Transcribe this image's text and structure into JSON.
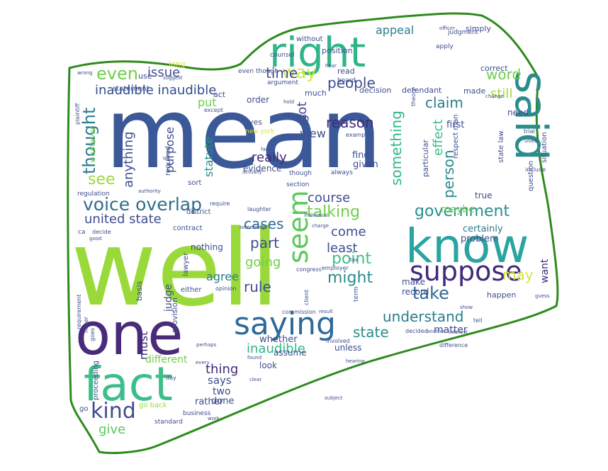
{
  "colors": {
    "border": "#2e8b1e",
    "background": "#ffffff",
    "palette": [
      "#3b5998",
      "#9ad93a",
      "#4a2a7a",
      "#2fb58a",
      "#2a8c8c",
      "#1f6e8c",
      "#5cc85a",
      "#d4e63c",
      "#3f4d8f"
    ]
  },
  "words": [
    {
      "text": "mean",
      "color": "#3b5998"
    },
    {
      "text": "well",
      "color": "#9ad93a"
    },
    {
      "text": "right",
      "color": "#2fb58a"
    },
    {
      "text": "know",
      "color": "#2aa4a0"
    },
    {
      "text": "one",
      "color": "#4a2a7a"
    },
    {
      "text": "fact",
      "color": "#3cbf8a"
    },
    {
      "text": "said",
      "color": "#2a8c8c"
    },
    {
      "text": "saying",
      "color": "#2d6a9a"
    },
    {
      "text": "suppose",
      "color": "#3f2a7a"
    },
    {
      "text": "government",
      "color": "#2a8c8c"
    },
    {
      "text": "voice overlap",
      "color": "#2f6d8c"
    },
    {
      "text": "kind",
      "color": "#3f4d8f"
    },
    {
      "text": "even",
      "color": "#6fcf4a"
    },
    {
      "text": "thought",
      "color": "#2a7d8c"
    },
    {
      "text": "way",
      "color": "#d4e63c"
    },
    {
      "text": "seem",
      "color": "#5cc85a"
    },
    {
      "text": "take",
      "color": "#2d6a9a"
    },
    {
      "text": "people",
      "color": "#3f4d8f"
    },
    {
      "text": "inaudible inaudible",
      "color": "#2f4e8a"
    },
    {
      "text": "issue",
      "color": "#3f4d8f"
    },
    {
      "text": "time",
      "color": "#3f4d8f"
    },
    {
      "text": "claim",
      "color": "#2a7d8c"
    },
    {
      "text": "word",
      "color": "#6fcf4a"
    },
    {
      "text": "still",
      "color": "#a0d93a"
    },
    {
      "text": "appeal",
      "color": "#2a7d8c"
    },
    {
      "text": "reason",
      "color": "#3f2a7a"
    },
    {
      "text": "really",
      "color": "#3f2a7a"
    },
    {
      "text": "something",
      "color": "#2fb58a"
    },
    {
      "text": "person",
      "color": "#2a8c8c"
    },
    {
      "text": "effect",
      "color": "#3cbf8a"
    },
    {
      "text": "talking",
      "color": "#6fcf4a"
    },
    {
      "text": "cases",
      "color": "#2d6a9a"
    },
    {
      "text": "come",
      "color": "#3f4d8f"
    },
    {
      "text": "least",
      "color": "#3f4d8f"
    },
    {
      "text": "part",
      "color": "#3f4d8f"
    },
    {
      "text": "point",
      "color": "#3cbf8a"
    },
    {
      "text": "going",
      "color": "#6fcf4a"
    },
    {
      "text": "might",
      "color": "#2a8c8c"
    },
    {
      "text": "rule",
      "color": "#3f4d8f"
    },
    {
      "text": "agree",
      "color": "#2a7d8c"
    },
    {
      "text": "united state",
      "color": "#3f4d8f"
    },
    {
      "text": "understand",
      "color": "#2a7d8c"
    },
    {
      "text": "state",
      "color": "#2a8c8c"
    },
    {
      "text": "inaudible",
      "color": "#2fb58a"
    },
    {
      "text": "thing",
      "color": "#3f2a7a"
    },
    {
      "text": "says",
      "color": "#3f4d8f"
    },
    {
      "text": "two",
      "color": "#3f4d8f"
    },
    {
      "text": "give",
      "color": "#5cc85a"
    },
    {
      "text": "see",
      "color": "#9ad93a"
    },
    {
      "text": "anything",
      "color": "#3f4d8f"
    },
    {
      "text": "statute",
      "color": "#2a8c8c"
    },
    {
      "text": "course",
      "color": "#3f4d8f"
    },
    {
      "text": "view",
      "color": "#3f4d8f"
    },
    {
      "text": "got",
      "color": "#3f4d8f"
    },
    {
      "text": "purpose",
      "color": "#3f4d8f"
    },
    {
      "text": "put",
      "color": "#6fcf4a"
    },
    {
      "text": "judge",
      "color": "#3f4d8f"
    },
    {
      "text": "must",
      "color": "#3f2a7a"
    },
    {
      "text": "matter",
      "color": "#3f4d8f"
    },
    {
      "text": "may",
      "color": "#d4e63c"
    },
    {
      "text": "want",
      "color": "#3f2a7a"
    },
    {
      "text": "certainly",
      "color": "#2a7d8c"
    },
    {
      "text": "true",
      "color": "#3f4d8f"
    },
    {
      "text": "maybe",
      "color": "#6fcf4a"
    },
    {
      "text": "problem",
      "color": "#3f4d8f"
    },
    {
      "text": "first",
      "color": "#3f4d8f"
    },
    {
      "text": "find",
      "color": "#3f4d8f"
    },
    {
      "text": "given",
      "color": "#3f4d8f"
    },
    {
      "text": "evidence",
      "color": "#3f4d8f"
    },
    {
      "text": "nothing",
      "color": "#3f4d8f"
    },
    {
      "text": "different",
      "color": "#6fcf4a"
    },
    {
      "text": "done",
      "color": "#3f4d8f"
    },
    {
      "text": "rather",
      "color": "#3f4d8f"
    },
    {
      "text": "assume",
      "color": "#3f4d8f"
    },
    {
      "text": "look",
      "color": "#3f4d8f"
    },
    {
      "text": "whether",
      "color": "#3f4d8f"
    },
    {
      "text": "unless",
      "color": "#3f4d8f"
    },
    {
      "text": "need",
      "color": "#3f4d8f"
    },
    {
      "text": "make",
      "color": "#3f4d8f"
    },
    {
      "text": "record",
      "color": "#3f4d8f"
    },
    {
      "text": "happen",
      "color": "#3f4d8f"
    },
    {
      "text": "correct",
      "color": "#3f4d8f"
    },
    {
      "text": "simply",
      "color": "#3f4d8f"
    },
    {
      "text": "position",
      "color": "#3f4d8f"
    },
    {
      "text": "read",
      "color": "#3f4d8f"
    },
    {
      "text": "order",
      "color": "#3f4d8f"
    },
    {
      "text": "much",
      "color": "#3f4d8f"
    },
    {
      "text": "decision",
      "color": "#3f4d8f"
    },
    {
      "text": "defendant",
      "color": "#3f4d8f"
    },
    {
      "text": "made",
      "color": "#3f4d8f"
    },
    {
      "text": "use",
      "color": "#3f4d8f"
    },
    {
      "text": "long",
      "color": "#d4e63c"
    },
    {
      "text": "act",
      "color": "#3f4d8f"
    },
    {
      "text": "statement",
      "color": "#3f4d8f"
    },
    {
      "text": "without",
      "color": "#3f4d8f"
    },
    {
      "text": "yes",
      "color": "#3f4d8f"
    },
    {
      "text": "new york",
      "color": "#d4e63c"
    },
    {
      "text": "whatever",
      "color": "#6fcf4a"
    },
    {
      "text": "required",
      "color": "#3f4d8f"
    },
    {
      "text": "sort",
      "color": "#3f4d8f"
    },
    {
      "text": "district",
      "color": "#3f4d8f"
    },
    {
      "text": "provision",
      "color": "#3f4d8f"
    },
    {
      "text": "lawyer",
      "color": "#3f4d8f"
    },
    {
      "text": "either",
      "color": "#3f4d8f"
    },
    {
      "text": "basis",
      "color": "#3f4d8f"
    },
    {
      "text": "contract",
      "color": "#3f4d8f"
    },
    {
      "text": "situation",
      "color": "#3f4d8f"
    },
    {
      "text": "state law",
      "color": "#3f4d8f"
    },
    {
      "text": "respect man",
      "color": "#3f4d8f"
    },
    {
      "text": "particular",
      "color": "#3f4d8f"
    },
    {
      "text": "question",
      "color": "#3f4d8f"
    },
    {
      "text": "go back",
      "color": "#9ad93a"
    },
    {
      "text": "business",
      "color": "#3f4d8f"
    },
    {
      "text": "standard",
      "color": "#3f4d8f"
    },
    {
      "text": "go",
      "color": "#3f4d8f"
    },
    {
      "text": "proceeding",
      "color": "#3f4d8f"
    },
    {
      "text": "ca",
      "color": "#3f4d8f"
    },
    {
      "text": "regulation",
      "color": "#3f4d8f"
    },
    {
      "text": "section",
      "color": "#3f4d8f"
    },
    {
      "text": "though",
      "color": "#3f4d8f"
    },
    {
      "text": "always",
      "color": "#3f4d8f"
    },
    {
      "text": "even though",
      "color": "#3f4d8f"
    },
    {
      "text": "argument",
      "color": "#3f4d8f"
    },
    {
      "text": "counsel",
      "color": "#3f4d8f"
    },
    {
      "text": "board",
      "color": "#3f4d8f"
    },
    {
      "text": "apply",
      "color": "#3f4d8f"
    },
    {
      "text": "judgment",
      "color": "#3f4d8f"
    },
    {
      "text": "officer",
      "color": "#3f4d8f"
    },
    {
      "text": "example",
      "color": "#3f4d8f"
    },
    {
      "text": "theory",
      "color": "#3f4d8f"
    },
    {
      "text": "trial",
      "color": "#3f4d8f"
    },
    {
      "text": "used",
      "color": "#3f4d8f"
    },
    {
      "text": "include",
      "color": "#3f4d8f"
    },
    {
      "text": "change",
      "color": "#3f4d8f"
    },
    {
      "text": "except",
      "color": "#3f4d8f"
    },
    {
      "text": "hold",
      "color": "#3f4d8f"
    },
    {
      "text": "finding",
      "color": "#3f4d8f"
    },
    {
      "text": "plaintiff",
      "color": "#3f4d8f"
    },
    {
      "text": "wrong",
      "color": "#3f4d8f"
    },
    {
      "text": "suggest",
      "color": "#3f4d8f"
    },
    {
      "text": "hear",
      "color": "#3f4d8f"
    },
    {
      "text": "let",
      "color": "#3f4d8f"
    },
    {
      "text": "require",
      "color": "#3f4d8f"
    },
    {
      "text": "far",
      "color": "#3f4d8f"
    },
    {
      "text": "actually",
      "color": "#3f4d8f"
    },
    {
      "text": "authority",
      "color": "#3f4d8f"
    },
    {
      "text": "individual",
      "color": "#3f4d8f"
    },
    {
      "text": "laughter",
      "color": "#3f4d8f"
    },
    {
      "text": "charge",
      "color": "#3f4d8f"
    },
    {
      "text": "somebody",
      "color": "#3f4d8f"
    },
    {
      "text": "decide",
      "color": "#3f4d8f"
    },
    {
      "text": "employer",
      "color": "#3f4d8f"
    },
    {
      "text": "congress",
      "color": "#3f4d8f"
    },
    {
      "text": "client",
      "color": "#3f4d8f"
    },
    {
      "text": "term",
      "color": "#3f4d8f"
    },
    {
      "text": "commission",
      "color": "#3f4d8f"
    },
    {
      "text": "result",
      "color": "#3f4d8f"
    },
    {
      "text": "hearing",
      "color": "#3f4d8f"
    },
    {
      "text": "subject",
      "color": "#3f4d8f"
    },
    {
      "text": "found",
      "color": "#3f4d8f"
    },
    {
      "text": "clear",
      "color": "#3f4d8f"
    },
    {
      "text": "every",
      "color": "#3f4d8f"
    },
    {
      "text": "perhaps",
      "color": "#3f4d8f"
    },
    {
      "text": "day",
      "color": "#3f4d8f"
    },
    {
      "text": "work",
      "color": "#3f4d8f"
    },
    {
      "text": "never",
      "color": "#3f4d8f"
    },
    {
      "text": "goes",
      "color": "#3f4d8f"
    },
    {
      "text": "requirement",
      "color": "#3f4d8f"
    },
    {
      "text": "interest",
      "color": "#3f4d8f"
    },
    {
      "text": "decided",
      "color": "#3f4d8f"
    },
    {
      "text": "difference",
      "color": "#3f4d8f"
    },
    {
      "text": "guess",
      "color": "#3f4d8f"
    },
    {
      "text": "tell",
      "color": "#3f4d8f"
    },
    {
      "text": "show",
      "color": "#3f4d8f"
    },
    {
      "text": "tax",
      "color": "#3f4d8f"
    },
    {
      "text": "good",
      "color": "#3f4d8f"
    },
    {
      "text": "opinion",
      "color": "#3f4d8f"
    },
    {
      "text": "involved",
      "color": "#3f4d8f"
    },
    {
      "text": "another",
      "color": "#3f4d8f"
    }
  ]
}
